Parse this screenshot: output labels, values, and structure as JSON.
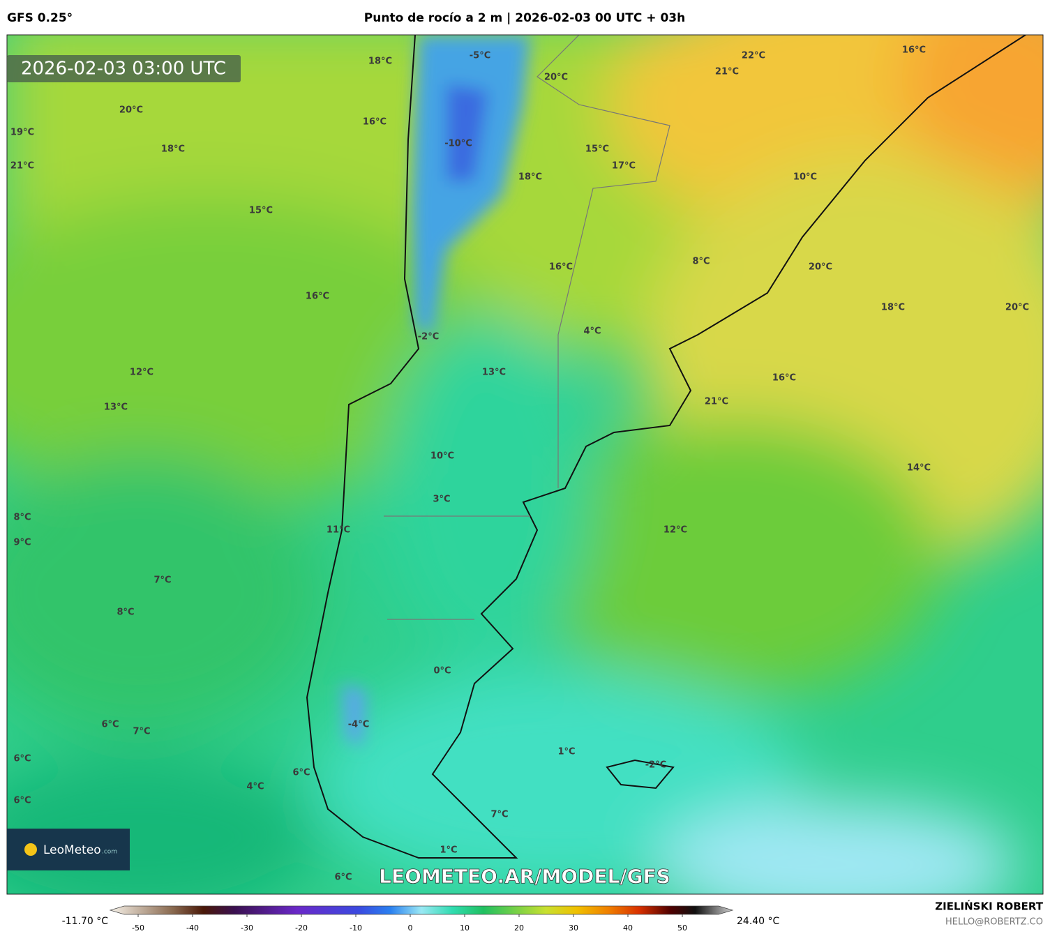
{
  "header": {
    "left": "GFS 0.25°",
    "title": "Punto de rocío a 2 m | 2026-02-03 00 UTC + 03h"
  },
  "timestamp": "2026-02-03 03:00 UTC",
  "map_labels": [
    "-5°C",
    "18°C",
    "20°C",
    "22°C",
    "21°C",
    "16°C",
    "20°C",
    "16°C",
    "19°C",
    "18°C",
    "-10°C",
    "15°C",
    "17°C",
    "21°C",
    "18°C",
    "10°C",
    "15°C",
    "16°C",
    "8°C",
    "20°C",
    "16°C",
    "18°C",
    "20°C",
    "4°C",
    "-2°C",
    "12°C",
    "13°C",
    "16°C",
    "21°C",
    "13°C",
    "10°C",
    "14°C",
    "3°C",
    "8°C",
    "12°C",
    "11°C",
    "9°C",
    "7°C",
    "8°C",
    "0°C",
    "6°C",
    "7°C",
    "-4°C",
    "1°C",
    "6°C",
    "-2°C",
    "6°C",
    "4°C",
    "6°C",
    "7°C",
    "1°C",
    "6°C"
  ],
  "watermark": "LEOMETEO.AR/MODEL/GFS",
  "logo": {
    "name": "LeoMeteo",
    "suffix": ".com"
  },
  "colorbar": {
    "min_label": "-11.70 °C",
    "max_label": "24.40 °C",
    "ticks": [
      -50,
      -40,
      -30,
      -20,
      -10,
      0,
      10,
      20,
      30,
      40,
      50
    ]
  },
  "credits": {
    "author": "ZIELIŃSKI ROBERT",
    "contact": "HELLO@ROBERTZ.CO"
  }
}
